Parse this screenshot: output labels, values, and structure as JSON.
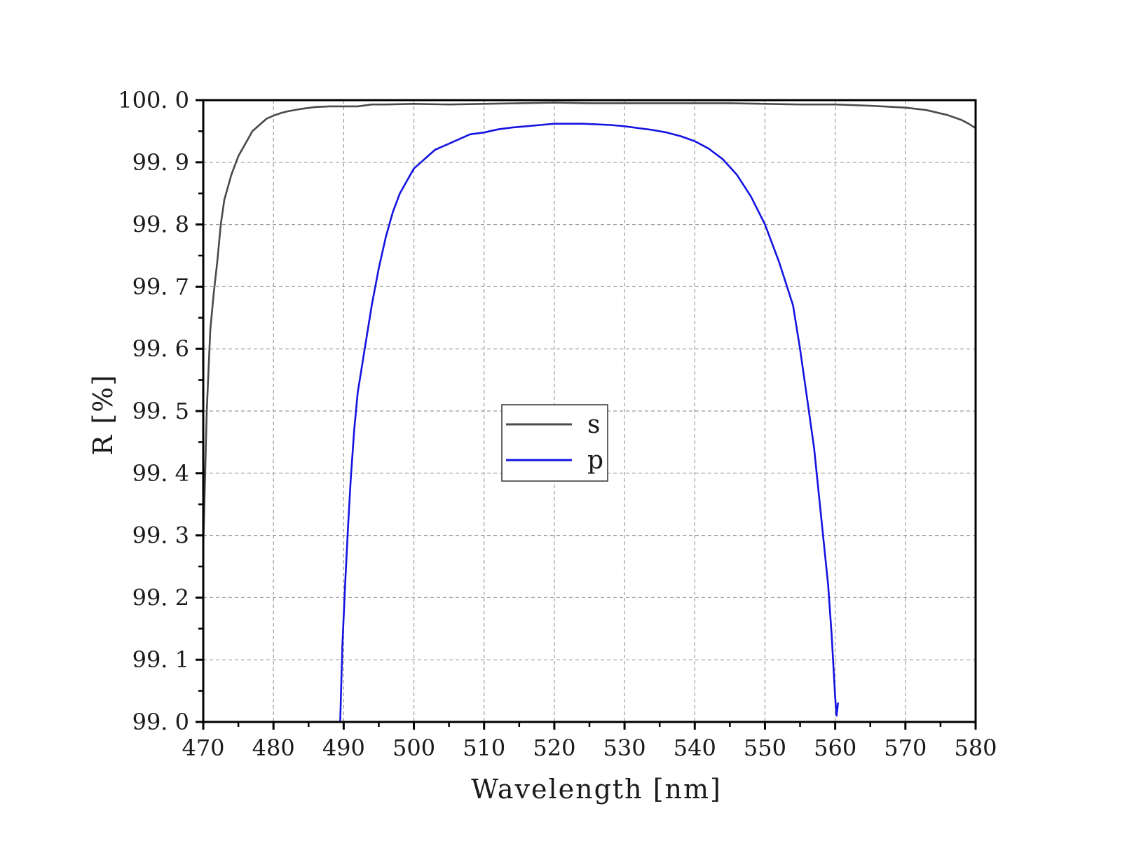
{
  "chart_data": {
    "type": "line",
    "xlabel": "Wavelength [nm]",
    "ylabel": "R [%]",
    "xlim": [
      470,
      580
    ],
    "ylim": [
      99.0,
      100.0
    ],
    "x_ticks": [
      470,
      480,
      490,
      500,
      510,
      520,
      530,
      540,
      550,
      560,
      570,
      580
    ],
    "x_tick_labels": [
      "470",
      "480",
      "490",
      "500",
      "510",
      "520",
      "530",
      "540",
      "550",
      "560",
      "570",
      "580"
    ],
    "y_ticks": [
      99.0,
      99.1,
      99.2,
      99.3,
      99.4,
      99.5,
      99.6,
      99.7,
      99.8,
      99.9,
      100.0
    ],
    "y_tick_labels": [
      "99. 0",
      "99. 1",
      "99. 2",
      "99. 3",
      "99. 4",
      "99. 5",
      "99. 6",
      "99. 7",
      "99. 8",
      "99. 9",
      "100. 0"
    ],
    "grid": true,
    "legend_position": "center",
    "series": [
      {
        "name": "s",
        "color": "#4a4a4a",
        "x": [
          470,
          470.5,
          471,
          471.5,
          472,
          472.5,
          473,
          474,
          475,
          476,
          477,
          478,
          479,
          480,
          481,
          482,
          484,
          486,
          488,
          490,
          492,
          494,
          496,
          500,
          505,
          510,
          515,
          520,
          525,
          530,
          535,
          540,
          545,
          550,
          555,
          560,
          565,
          570,
          573,
          576,
          578,
          579,
          580
        ],
        "y": [
          99.28,
          99.5,
          99.63,
          99.69,
          99.74,
          99.8,
          99.84,
          99.88,
          99.91,
          99.93,
          99.95,
          99.96,
          99.97,
          99.975,
          99.979,
          99.982,
          99.986,
          99.989,
          99.99,
          99.99,
          99.99,
          99.993,
          99.993,
          99.994,
          99.993,
          99.994,
          99.995,
          99.996,
          99.995,
          99.995,
          99.995,
          99.995,
          99.995,
          99.994,
          99.993,
          99.993,
          99.991,
          99.988,
          99.984,
          99.976,
          99.968,
          99.962,
          99.955
        ]
      },
      {
        "name": "p",
        "color": "#1414e0",
        "x": [
          489.5,
          489.8,
          490.2,
          490.6,
          491,
          491.5,
          492,
          493,
          494,
          495,
          496,
          497,
          498,
          499,
          500,
          501,
          502,
          503,
          504,
          505,
          506,
          508,
          510,
          512,
          514,
          516,
          518,
          520,
          522,
          524,
          526,
          528,
          530,
          532,
          534,
          536,
          538,
          540,
          542,
          544,
          546,
          548,
          550,
          552,
          554,
          555,
          556,
          557,
          558,
          559,
          559.5,
          559.8,
          560,
          560.2,
          560.4
        ],
        "y": [
          99.0,
          99.12,
          99.22,
          99.31,
          99.39,
          99.47,
          99.53,
          99.6,
          99.67,
          99.73,
          99.78,
          99.82,
          99.85,
          99.87,
          99.89,
          99.9,
          99.91,
          99.92,
          99.925,
          99.93,
          99.935,
          99.945,
          99.948,
          99.953,
          99.956,
          99.958,
          99.96,
          99.962,
          99.962,
          99.962,
          99.961,
          99.96,
          99.958,
          99.955,
          99.952,
          99.948,
          99.942,
          99.934,
          99.922,
          99.905,
          99.88,
          99.845,
          99.8,
          99.74,
          99.67,
          99.6,
          99.52,
          99.44,
          99.33,
          99.22,
          99.14,
          99.08,
          99.04,
          99.01,
          99.03
        ]
      }
    ]
  }
}
